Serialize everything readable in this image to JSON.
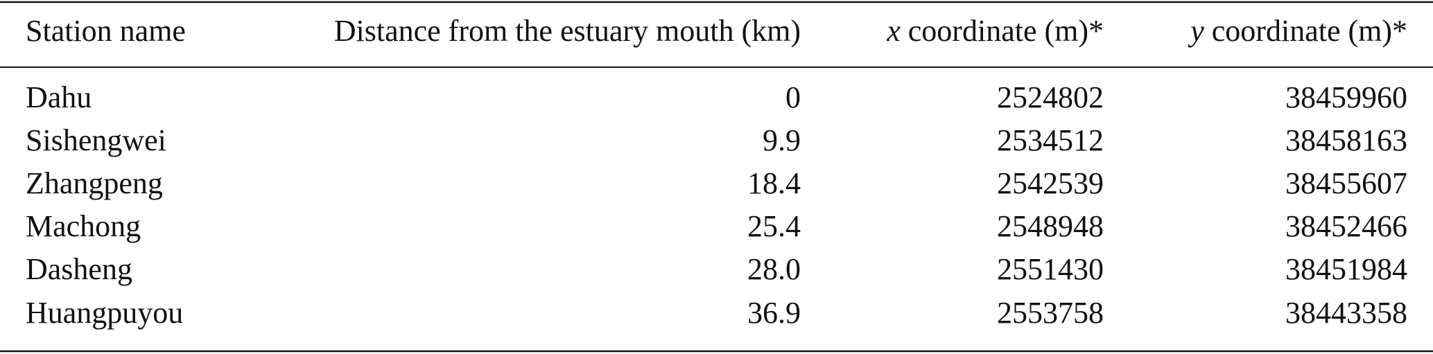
{
  "table": {
    "header": [
      "Station name",
      "Distance from the estuary mouth (km)",
      {
        "var": "x",
        "text": "coordinate (m)*"
      },
      {
        "var": "y",
        "text": "coordinate (m)*"
      }
    ],
    "rows": [
      [
        "Dahu",
        "0",
        "2524802",
        "38459960"
      ],
      [
        "Sishengwei",
        "9.9",
        "2534512",
        "38458163"
      ],
      [
        "Zhangpeng",
        "18.4",
        "2542539",
        "38455607"
      ],
      [
        "Machong",
        "25.4",
        "2548948",
        "38452466"
      ],
      [
        "Dasheng",
        "28.0",
        "2551430",
        "38451984"
      ],
      [
        "Huangpuyou",
        "36.9",
        "2553758",
        "38443358"
      ]
    ]
  }
}
